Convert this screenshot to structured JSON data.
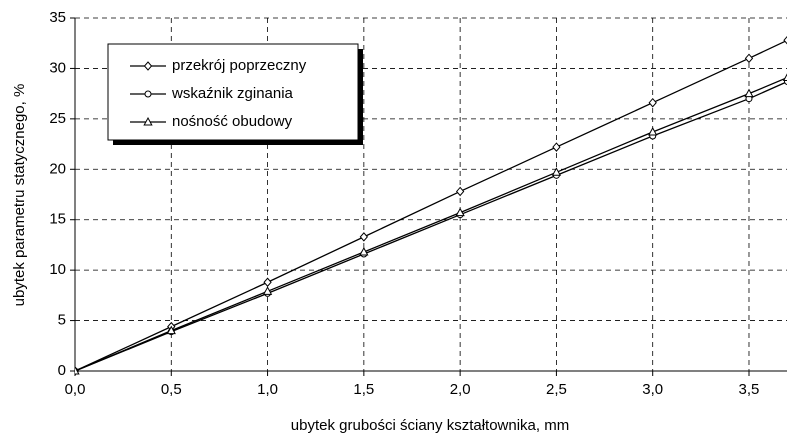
{
  "chart_data": {
    "type": "line",
    "x_label": "ubytek grubości ściany kształtownika, mm",
    "y_label": "ubytek parametru statycznego, %",
    "x": [
      0,
      0.5,
      1.0,
      1.5,
      2.0,
      2.5,
      3.0,
      3.5,
      3.7
    ],
    "series": [
      {
        "name": "przekrój poprzeczny",
        "color": "#000000",
        "marker": "diamond",
        "values": [
          0,
          4.4,
          8.8,
          13.3,
          17.8,
          22.2,
          26.6,
          31.0,
          32.8
        ]
      },
      {
        "name": "wskaźnik zginania",
        "color": "#000000",
        "marker": "circle",
        "values": [
          0,
          3.9,
          7.7,
          11.6,
          15.5,
          19.4,
          23.3,
          27.0,
          28.7
        ]
      },
      {
        "name": "nośność obudowy",
        "color": "#000000",
        "marker": "triangle",
        "values": [
          0,
          4.0,
          7.9,
          11.8,
          15.7,
          19.7,
          23.7,
          27.5,
          29.1
        ]
      }
    ],
    "xlim": [
      0,
      3.7
    ],
    "xticks": [
      {
        "value": 0,
        "label": "0,0"
      },
      {
        "value": 0.5,
        "label": "0,5"
      },
      {
        "value": 1.0,
        "label": "1,0"
      },
      {
        "value": 1.5,
        "label": "1,5"
      },
      {
        "value": 2.0,
        "label": "2,0"
      },
      {
        "value": 2.5,
        "label": "2,5"
      },
      {
        "value": 3.0,
        "label": "3,0"
      },
      {
        "value": 3.5,
        "label": "3,5"
      }
    ],
    "ylim": [
      0,
      35
    ],
    "yticks": [
      0,
      5,
      10,
      15,
      20,
      25,
      30,
      35
    ],
    "grid": true,
    "legend": "upper left"
  }
}
